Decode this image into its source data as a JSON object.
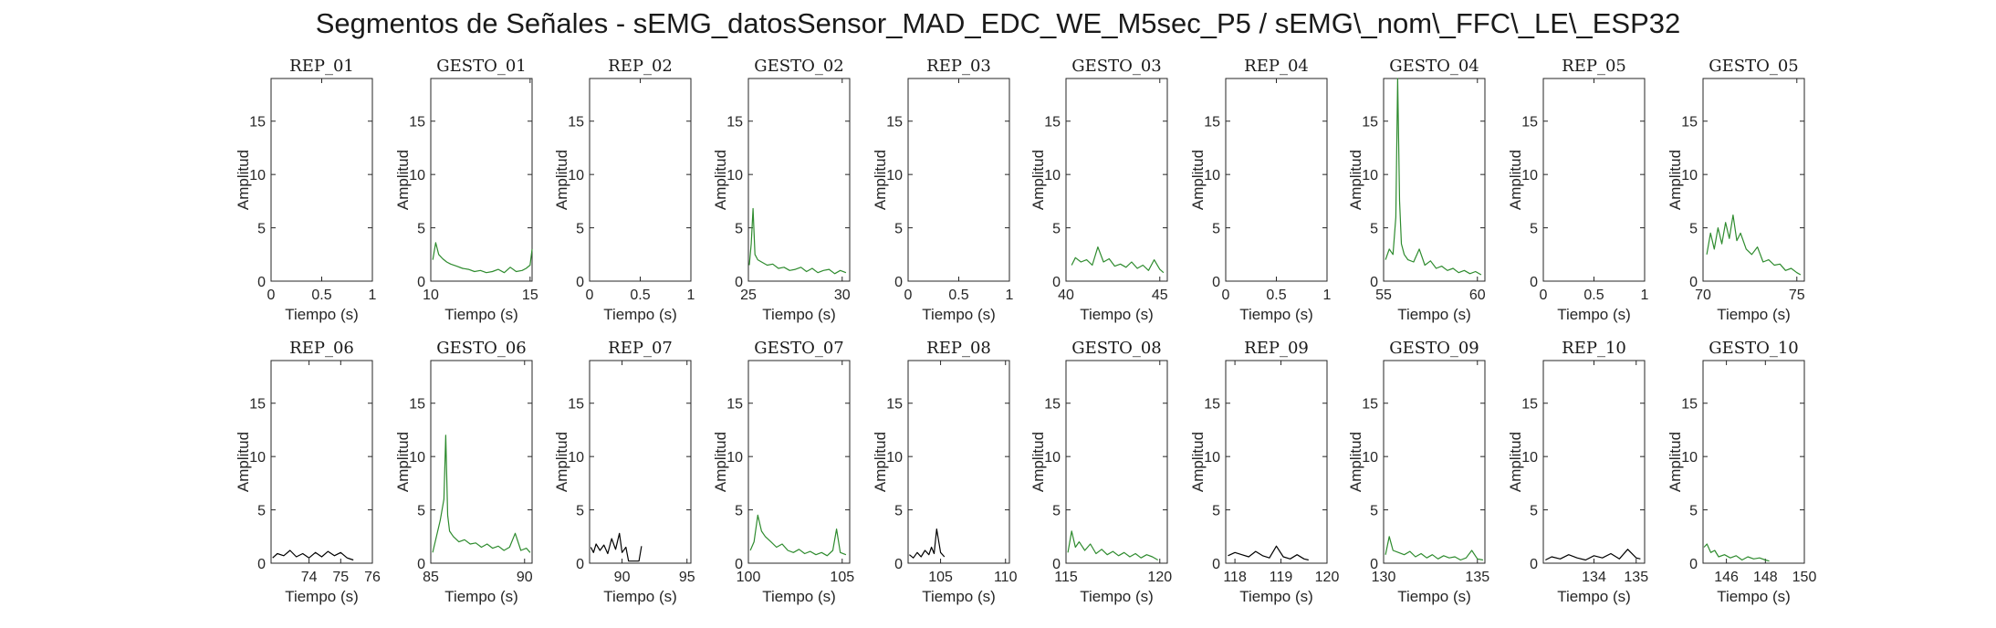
{
  "title": "Segmentos de Señales - sEMG_datosSensor_MAD_EDC_WE_M5sec_P5 / sEMG\\_nom\\_FFC\\_LE\\_ESP32",
  "colors": {
    "rep": "#000000",
    "gesto": "#2e8b2e",
    "axis": "#262626"
  },
  "chart_data": [
    {
      "type": "line",
      "title": "REP_01",
      "xlabel": "Tiempo (s)",
      "ylabel": "Amplitud",
      "xlim": [
        0,
        1
      ],
      "ylim": [
        0,
        19
      ],
      "xticks": [
        0,
        0.5,
        1
      ],
      "yticks": [
        0,
        5,
        10,
        15
      ],
      "color": "rep",
      "x": [],
      "y": []
    },
    {
      "type": "line",
      "title": "GESTO_01",
      "xlabel": "Tiempo (s)",
      "ylabel": "Amplitud",
      "xlim": [
        10,
        15.1
      ],
      "ylim": [
        0,
        19
      ],
      "xticks": [
        10,
        15
      ],
      "yticks": [
        0,
        5,
        10,
        15
      ],
      "color": "gesto",
      "x": [
        10.1,
        10.25,
        10.4,
        10.6,
        10.8,
        11.0,
        11.3,
        11.6,
        11.9,
        12.2,
        12.5,
        12.8,
        13.1,
        13.4,
        13.7,
        14.0,
        14.3,
        14.6,
        14.8,
        15.0,
        15.1
      ],
      "y": [
        2.0,
        3.6,
        2.5,
        2.1,
        1.8,
        1.6,
        1.4,
        1.2,
        1.1,
        0.9,
        1.0,
        0.8,
        0.9,
        1.1,
        0.8,
        1.3,
        0.9,
        1.0,
        1.2,
        1.5,
        3.0
      ]
    },
    {
      "type": "line",
      "title": "REP_02",
      "xlabel": "Tiempo (s)",
      "ylabel": "Amplitud",
      "xlim": [
        0,
        1
      ],
      "ylim": [
        0,
        19
      ],
      "xticks": [
        0,
        0.5,
        1
      ],
      "yticks": [
        0,
        5,
        10,
        15
      ],
      "color": "rep",
      "x": [],
      "y": []
    },
    {
      "type": "line",
      "title": "GESTO_02",
      "xlabel": "Tiempo (s)",
      "ylabel": "Amplitud",
      "xlim": [
        25,
        30.4
      ],
      "ylim": [
        0,
        19
      ],
      "xticks": [
        25,
        30
      ],
      "yticks": [
        0,
        5,
        10,
        15
      ],
      "color": "gesto",
      "x": [
        25.05,
        25.15,
        25.25,
        25.35,
        25.5,
        25.7,
        26.0,
        26.3,
        26.6,
        26.9,
        27.2,
        27.5,
        27.8,
        28.1,
        28.4,
        28.7,
        29.0,
        29.3,
        29.6,
        29.9,
        30.2
      ],
      "y": [
        1.5,
        3.5,
        6.8,
        2.5,
        2.0,
        1.8,
        1.5,
        1.6,
        1.2,
        1.3,
        1.0,
        1.1,
        1.3,
        0.9,
        1.2,
        0.8,
        1.0,
        1.1,
        0.7,
        1.0,
        0.8
      ]
    },
    {
      "type": "line",
      "title": "REP_03",
      "xlabel": "Tiempo (s)",
      "ylabel": "Amplitud",
      "xlim": [
        0,
        1
      ],
      "ylim": [
        0,
        19
      ],
      "xticks": [
        0,
        0.5,
        1
      ],
      "yticks": [
        0,
        5,
        10,
        15
      ],
      "color": "rep",
      "x": [],
      "y": []
    },
    {
      "type": "line",
      "title": "GESTO_03",
      "xlabel": "Tiempo (s)",
      "ylabel": "Amplitud",
      "xlim": [
        40,
        45.4
      ],
      "ylim": [
        0,
        19
      ],
      "xticks": [
        40,
        45
      ],
      "yticks": [
        0,
        5,
        10,
        15
      ],
      "color": "gesto",
      "x": [
        40.3,
        40.5,
        40.8,
        41.1,
        41.4,
        41.7,
        42.0,
        42.3,
        42.6,
        42.9,
        43.2,
        43.5,
        43.8,
        44.1,
        44.4,
        44.7,
        45.0,
        45.2
      ],
      "y": [
        1.5,
        2.2,
        1.8,
        2.0,
        1.5,
        3.2,
        1.8,
        2.1,
        1.4,
        1.6,
        1.3,
        1.8,
        1.2,
        1.5,
        1.0,
        2.0,
        1.1,
        0.8
      ]
    },
    {
      "type": "line",
      "title": "REP_04",
      "xlabel": "Tiempo (s)",
      "ylabel": "Amplitud",
      "xlim": [
        0,
        1
      ],
      "ylim": [
        0,
        19
      ],
      "xticks": [
        0,
        0.5,
        1
      ],
      "yticks": [
        0,
        5,
        10,
        15
      ],
      "color": "rep",
      "x": [],
      "y": []
    },
    {
      "type": "line",
      "title": "GESTO_04",
      "xlabel": "Tiempo (s)",
      "ylabel": "Amplitud",
      "xlim": [
        55,
        60.4
      ],
      "ylim": [
        0,
        19
      ],
      "xticks": [
        55,
        60
      ],
      "yticks": [
        0,
        5,
        10,
        15
      ],
      "color": "gesto",
      "x": [
        55.1,
        55.3,
        55.5,
        55.65,
        55.75,
        55.85,
        55.95,
        56.1,
        56.3,
        56.6,
        56.9,
        57.2,
        57.5,
        57.8,
        58.1,
        58.4,
        58.7,
        59.0,
        59.3,
        59.6,
        59.9,
        60.2
      ],
      "y": [
        2.0,
        3.0,
        2.5,
        6.0,
        19.0,
        7.5,
        3.5,
        2.5,
        2.0,
        1.8,
        3.0,
        1.5,
        1.9,
        1.2,
        1.4,
        1.0,
        1.2,
        0.8,
        1.0,
        0.7,
        0.9,
        0.6
      ]
    },
    {
      "type": "line",
      "title": "REP_05",
      "xlabel": "Tiempo (s)",
      "ylabel": "Amplitud",
      "xlim": [
        0,
        1
      ],
      "ylim": [
        0,
        19
      ],
      "xticks": [
        0,
        0.5,
        1
      ],
      "yticks": [
        0,
        5,
        10,
        15
      ],
      "color": "rep",
      "x": [],
      "y": []
    },
    {
      "type": "line",
      "title": "GESTO_05",
      "xlabel": "Tiempo (s)",
      "ylabel": "Amplitud",
      "xlim": [
        70,
        75.4
      ],
      "ylim": [
        0,
        19
      ],
      "xticks": [
        70,
        75
      ],
      "yticks": [
        0,
        5,
        10,
        15
      ],
      "color": "gesto",
      "x": [
        70.2,
        70.4,
        70.6,
        70.8,
        71.0,
        71.2,
        71.4,
        71.6,
        71.8,
        72.0,
        72.3,
        72.6,
        72.9,
        73.2,
        73.5,
        73.8,
        74.1,
        74.4,
        74.7,
        75.0,
        75.2
      ],
      "y": [
        2.5,
        4.5,
        3.0,
        5.0,
        3.5,
        5.5,
        4.0,
        6.2,
        3.8,
        4.5,
        3.0,
        2.5,
        3.2,
        1.8,
        2.0,
        1.5,
        1.6,
        1.0,
        1.2,
        0.8,
        0.6
      ]
    },
    {
      "type": "line",
      "title": "REP_06",
      "xlabel": "Tiempo (s)",
      "ylabel": "Amplitud",
      "xlim": [
        72.8,
        76
      ],
      "ylim": [
        0,
        19
      ],
      "xticks": [
        74,
        75,
        76
      ],
      "yticks": [
        0,
        5,
        10,
        15
      ],
      "color": "rep",
      "x": [
        72.85,
        73.0,
        73.2,
        73.4,
        73.6,
        73.8,
        74.0,
        74.2,
        74.4,
        74.6,
        74.8,
        75.0,
        75.2,
        75.4
      ],
      "y": [
        0.5,
        0.9,
        0.7,
        1.2,
        0.6,
        0.9,
        0.5,
        1.0,
        0.6,
        1.1,
        0.7,
        1.0,
        0.5,
        0.3
      ]
    },
    {
      "type": "line",
      "title": "GESTO_06",
      "xlabel": "Tiempo (s)",
      "ylabel": "Amplitud",
      "xlim": [
        85,
        90.4
      ],
      "ylim": [
        0,
        19
      ],
      "xticks": [
        85,
        90
      ],
      "yticks": [
        0,
        5,
        10,
        15
      ],
      "color": "gesto",
      "x": [
        85.1,
        85.3,
        85.5,
        85.7,
        85.8,
        85.9,
        86.0,
        86.2,
        86.5,
        86.8,
        87.1,
        87.4,
        87.7,
        88.0,
        88.3,
        88.6,
        88.9,
        89.2,
        89.5,
        89.8,
        90.1,
        90.3
      ],
      "y": [
        1.0,
        2.5,
        4.0,
        6.0,
        12.0,
        4.5,
        3.0,
        2.5,
        2.0,
        2.2,
        1.8,
        1.9,
        1.5,
        1.8,
        1.4,
        1.6,
        1.2,
        1.5,
        2.8,
        1.2,
        1.4,
        1.0
      ]
    },
    {
      "type": "line",
      "title": "REP_07",
      "xlabel": "Tiempo (s)",
      "ylabel": "Amplitud",
      "xlim": [
        87.5,
        95.3
      ],
      "ylim": [
        0,
        19
      ],
      "xticks": [
        90,
        95
      ],
      "yticks": [
        0,
        5,
        10,
        15
      ],
      "color": "rep",
      "x": [
        87.6,
        87.8,
        88.0,
        88.3,
        88.6,
        88.9,
        89.2,
        89.5,
        89.8,
        90.0,
        90.3,
        90.5,
        91.3,
        91.5
      ],
      "y": [
        1.5,
        1.0,
        1.8,
        1.2,
        1.7,
        0.9,
        2.3,
        1.3,
        2.8,
        1.0,
        1.5,
        0.2,
        0.2,
        1.6
      ]
    },
    {
      "type": "line",
      "title": "GESTO_07",
      "xlabel": "Tiempo (s)",
      "ylabel": "Amplitud",
      "xlim": [
        100,
        105.4
      ],
      "ylim": [
        0,
        19
      ],
      "xticks": [
        100,
        105
      ],
      "yticks": [
        0,
        5,
        10,
        15
      ],
      "color": "gesto",
      "x": [
        100.1,
        100.3,
        100.5,
        100.7,
        100.9,
        101.2,
        101.5,
        101.8,
        102.1,
        102.4,
        102.7,
        103.0,
        103.3,
        103.6,
        103.9,
        104.2,
        104.5,
        104.7,
        104.9,
        105.2
      ],
      "y": [
        1.2,
        2.0,
        4.5,
        3.0,
        2.5,
        2.0,
        1.5,
        1.8,
        1.2,
        1.0,
        1.3,
        0.9,
        1.1,
        0.8,
        1.0,
        0.7,
        1.2,
        3.2,
        1.0,
        0.8
      ]
    },
    {
      "type": "line",
      "title": "REP_08",
      "xlabel": "Tiempo (s)",
      "ylabel": "Amplitud",
      "xlim": [
        102.5,
        110.3
      ],
      "ylim": [
        0,
        19
      ],
      "xticks": [
        105,
        110
      ],
      "yticks": [
        0,
        5,
        10,
        15
      ],
      "color": "rep",
      "x": [
        102.6,
        102.9,
        103.2,
        103.5,
        103.8,
        104.1,
        104.3,
        104.5,
        104.7,
        105.0,
        105.3
      ],
      "y": [
        0.8,
        0.5,
        1.0,
        0.6,
        1.2,
        0.8,
        1.5,
        0.9,
        3.2,
        1.0,
        0.6
      ]
    },
    {
      "type": "line",
      "title": "GESTO_08",
      "xlabel": "Tiempo (s)",
      "ylabel": "Amplitud",
      "xlim": [
        115,
        120.4
      ],
      "ylim": [
        0,
        19
      ],
      "xticks": [
        115,
        120
      ],
      "yticks": [
        0,
        5,
        10,
        15
      ],
      "color": "gesto",
      "x": [
        115.1,
        115.3,
        115.5,
        115.7,
        116.0,
        116.3,
        116.6,
        116.9,
        117.2,
        117.5,
        117.8,
        118.1,
        118.4,
        118.7,
        119.0,
        119.3,
        119.6,
        119.9
      ],
      "y": [
        1.0,
        3.0,
        1.5,
        2.0,
        1.2,
        1.8,
        0.9,
        1.3,
        0.8,
        1.1,
        0.7,
        1.0,
        0.6,
        0.9,
        0.5,
        0.8,
        0.6,
        0.3
      ]
    },
    {
      "type": "line",
      "title": "REP_09",
      "xlabel": "Tiempo (s)",
      "ylabel": "Amplitud",
      "xlim": [
        117.8,
        120
      ],
      "ylim": [
        0,
        19
      ],
      "xticks": [
        118,
        119,
        120
      ],
      "yticks": [
        0,
        5,
        10,
        15
      ],
      "color": "rep",
      "x": [
        117.85,
        118.0,
        118.15,
        118.3,
        118.45,
        118.6,
        118.75,
        118.9,
        119.05,
        119.2,
        119.35,
        119.5,
        119.6
      ],
      "y": [
        0.7,
        1.0,
        0.8,
        0.6,
        1.1,
        0.7,
        0.5,
        1.6,
        0.6,
        0.4,
        0.8,
        0.4,
        0.3
      ]
    },
    {
      "type": "line",
      "title": "GESTO_09",
      "xlabel": "Tiempo (s)",
      "ylabel": "Amplitud",
      "xlim": [
        130,
        135.4
      ],
      "ylim": [
        0,
        19
      ],
      "xticks": [
        130,
        135
      ],
      "yticks": [
        0,
        5,
        10,
        15
      ],
      "color": "gesto",
      "x": [
        130.1,
        130.3,
        130.5,
        130.8,
        131.1,
        131.4,
        131.7,
        132.0,
        132.3,
        132.6,
        132.9,
        133.2,
        133.5,
        133.8,
        134.1,
        134.4,
        134.7,
        135.0,
        135.3
      ],
      "y": [
        0.8,
        2.5,
        1.2,
        1.0,
        0.8,
        1.1,
        0.6,
        0.9,
        0.5,
        0.8,
        0.4,
        0.7,
        0.5,
        0.6,
        0.3,
        0.5,
        1.2,
        0.4,
        0.3
      ]
    },
    {
      "type": "line",
      "title": "REP_10",
      "xlabel": "Tiempo (s)",
      "ylabel": "Amplitud",
      "xlim": [
        132.8,
        135.2
      ],
      "ylim": [
        0,
        19
      ],
      "xticks": [
        134,
        135
      ],
      "yticks": [
        0,
        5,
        10,
        15
      ],
      "color": "rep",
      "x": [
        132.85,
        133.0,
        133.2,
        133.4,
        133.6,
        133.8,
        134.0,
        134.2,
        134.4,
        134.6,
        134.8,
        135.0,
        135.1
      ],
      "y": [
        0.3,
        0.6,
        0.4,
        0.8,
        0.5,
        0.3,
        0.7,
        0.5,
        0.9,
        0.4,
        1.3,
        0.5,
        0.4
      ]
    },
    {
      "type": "line",
      "title": "GESTO_10",
      "xlabel": "Tiempo (s)",
      "ylabel": "Amplitud",
      "xlim": [
        144.8,
        150
      ],
      "ylim": [
        0,
        19
      ],
      "xticks": [
        146,
        148,
        150
      ],
      "yticks": [
        0,
        5,
        10,
        15
      ],
      "color": "gesto",
      "x": [
        144.85,
        145.0,
        145.2,
        145.4,
        145.6,
        145.9,
        146.2,
        146.5,
        146.8,
        147.1,
        147.4,
        147.7,
        148.0,
        148.2
      ],
      "y": [
        1.5,
        1.8,
        1.0,
        1.2,
        0.6,
        0.8,
        0.5,
        0.7,
        0.3,
        0.6,
        0.4,
        0.5,
        0.3,
        0.2
      ]
    }
  ]
}
